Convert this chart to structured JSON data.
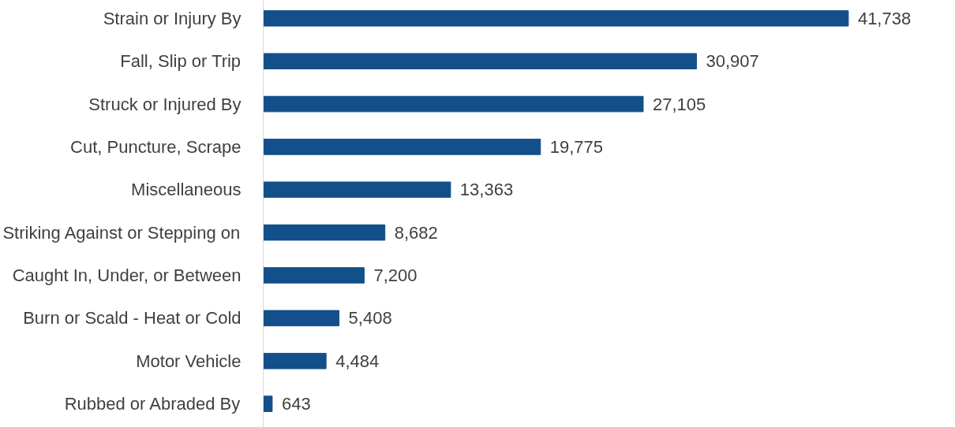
{
  "chart_data": {
    "type": "bar",
    "orientation": "horizontal",
    "value_labels": [
      "41,738",
      "30,907",
      "27,105",
      "19,775",
      "13,363",
      "8,682",
      "7,200",
      "5,408",
      "4,484",
      "643"
    ],
    "categories": [
      "Strain or Injury By",
      "Fall, Slip or Trip",
      "Struck or Injured By",
      "Cut, Puncture, Scrape",
      "Miscellaneous",
      "Striking Against or Stepping on",
      "Caught In, Under, or Between",
      "Burn or Scald - Heat or Cold",
      "Motor Vehicle",
      "Rubbed or Abraded By"
    ],
    "values": [
      41738,
      30907,
      27105,
      19775,
      13363,
      8682,
      7200,
      5408,
      4484,
      643
    ],
    "color": "#134f8a"
  }
}
